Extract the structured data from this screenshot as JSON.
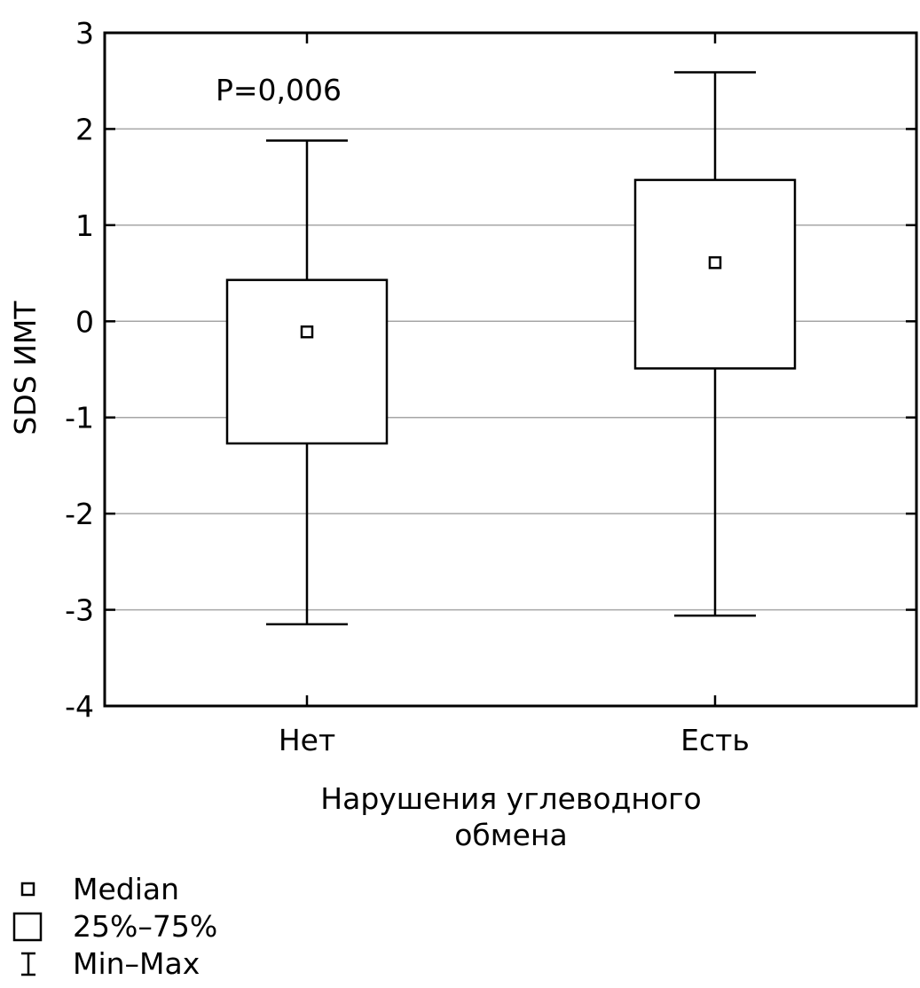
{
  "chart_data": {
    "type": "box",
    "xlabel": "Нарушения углеводного обмена",
    "ylabel": "SDS ИМТ",
    "ylim": [
      -4,
      3
    ],
    "yticks": [
      "3",
      "2",
      "1",
      "0",
      "-1",
      "-2",
      "-3",
      "-4"
    ],
    "ytick_values": [
      3,
      2,
      1,
      0,
      -1,
      -2,
      -3,
      -4
    ],
    "grid": true,
    "categories": [
      "Нет",
      "Есть"
    ],
    "boxes": [
      {
        "category": "Нет",
        "min": -3.15,
        "q1": -1.27,
        "median": -0.11,
        "q3": 0.43,
        "max": 1.88
      },
      {
        "category": "Есть",
        "min": -3.06,
        "q1": -0.49,
        "median": 0.61,
        "q3": 1.47,
        "max": 2.59
      }
    ],
    "annotation": "P=0,006",
    "legend": {
      "placement": "bottom-left",
      "entries": [
        {
          "symbol": "median-marker",
          "label": "Median"
        },
        {
          "symbol": "box",
          "label": "25%–75%"
        },
        {
          "symbol": "whisker",
          "label": "Min–Max"
        }
      ]
    },
    "colors": {
      "line": "#000000",
      "grid": "#a6a6a6",
      "background": "#ffffff"
    }
  }
}
